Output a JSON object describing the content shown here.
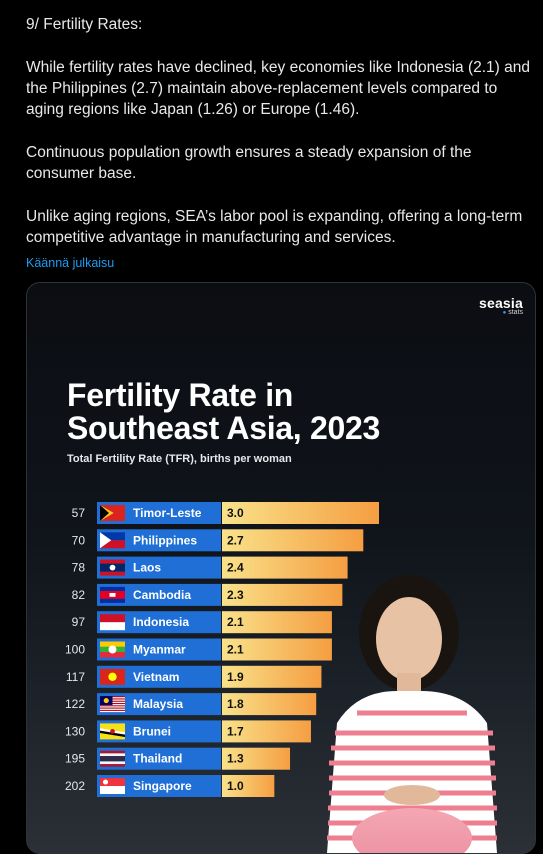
{
  "post": {
    "heading": "9/ Fertility Rates:",
    "para1": "While fertility rates have declined, key economies like Indonesia (2.1) and the Philippines (2.7) maintain above-replacement levels compared to aging regions like Japan (1.26) or Europe (1.46).",
    "para2": "Continuous population growth ensures a steady expansion of the consumer base.",
    "para3": "Unlike aging regions, SEA’s labor pool is expanding, offering a long-term competitive advantage in manufacturing and services.",
    "translate_label": "Käännä julkaisu"
  },
  "card": {
    "brand_name": "seasia",
    "brand_sub": "stats"
  },
  "chart_data": {
    "type": "bar",
    "title": "Fertility Rate in Southeast Asia, 2023",
    "subtitle": "Total Fertility Rate (TFR), births per woman",
    "categories": [
      "Timor-Leste",
      "Philippines",
      "Laos",
      "Cambodia",
      "Indonesia",
      "Myanmar",
      "Vietnam",
      "Malaysia",
      "Brunei",
      "Thailand",
      "Singapore"
    ],
    "ranks": [
      "57",
      "70",
      "78",
      "82",
      "97",
      "100",
      "117",
      "122",
      "130",
      "195",
      "202"
    ],
    "values": [
      3.0,
      2.7,
      2.4,
      2.3,
      2.1,
      2.1,
      1.9,
      1.8,
      1.7,
      1.3,
      1.0
    ],
    "value_labels": [
      "3.0",
      "2.7",
      "2.4",
      "2.3",
      "2.1",
      "2.1",
      "1.9",
      "1.8",
      "1.7",
      "1.3",
      "1.0"
    ],
    "flag_icons": [
      "timor-leste-flag-icon",
      "philippines-flag-icon",
      "laos-flag-icon",
      "cambodia-flag-icon",
      "indonesia-flag-icon",
      "myanmar-flag-icon",
      "vietnam-flag-icon",
      "malaysia-flag-icon",
      "brunei-flag-icon",
      "thailand-flag-icon",
      "singapore-flag-icon"
    ],
    "xlim": [
      0,
      3.0
    ],
    "bar_color": "#f7b24a",
    "label_box_color": "#1f6fd6",
    "grid": false,
    "legend": "none"
  }
}
